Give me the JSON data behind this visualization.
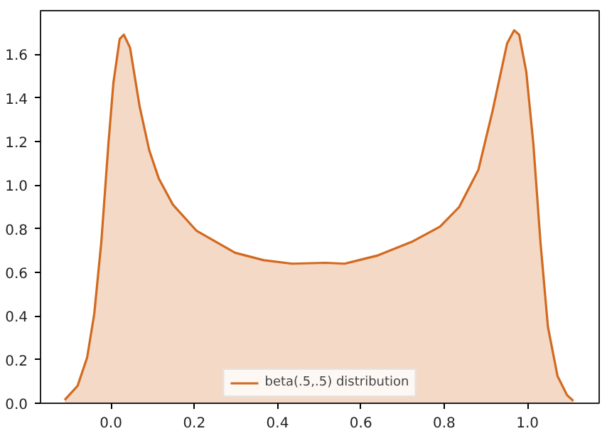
{
  "chart_data": {
    "type": "area",
    "xlim": [
      -0.169,
      1.172
    ],
    "ylim": [
      0,
      1.8
    ],
    "xticks": [
      {
        "value": 0.0,
        "label": "0.0"
      },
      0.2,
      0.4,
      0.6,
      0.8,
      {
        "value": 1.0,
        "label": "1.0"
      }
    ],
    "yticks": [
      {
        "value": 0.0,
        "label": "0.0"
      },
      0.2,
      0.4,
      0.6,
      0.8,
      {
        "value": 1.0,
        "label": "1.0"
      },
      1.2,
      1.4,
      1.6
    ],
    "grid": false,
    "legend": "bottom",
    "series": [
      {
        "name": "beta(.5,.5) distribution",
        "color": "#d2691e",
        "x": [
          -0.111,
          -0.08,
          -0.057,
          -0.04,
          -0.023,
          -0.006,
          0.006,
          0.021,
          0.031,
          0.046,
          0.069,
          0.092,
          0.115,
          0.149,
          0.206,
          0.298,
          0.367,
          0.435,
          0.515,
          0.561,
          0.641,
          0.722,
          0.79,
          0.836,
          0.882,
          0.916,
          0.951,
          0.968,
          0.98,
          0.997,
          1.014,
          1.031,
          1.049,
          1.072,
          1.095,
          1.11
        ],
        "values": [
          0.015,
          0.08,
          0.21,
          0.41,
          0.74,
          1.19,
          1.47,
          1.67,
          1.69,
          1.63,
          1.36,
          1.16,
          1.03,
          0.91,
          0.79,
          0.69,
          0.656,
          0.64,
          0.644,
          0.64,
          0.678,
          0.74,
          0.81,
          0.9,
          1.07,
          1.34,
          1.65,
          1.71,
          1.69,
          1.52,
          1.19,
          0.74,
          0.35,
          0.125,
          0.037,
          0.011
        ]
      }
    ]
  }
}
